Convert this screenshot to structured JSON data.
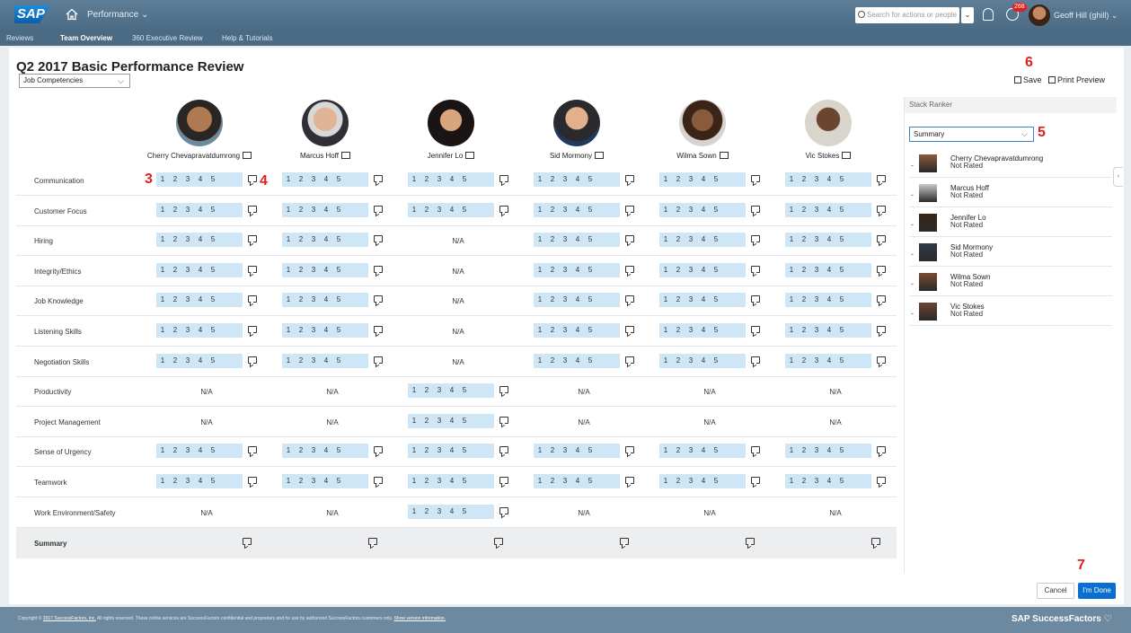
{
  "header": {
    "logo": "SAP",
    "module": "Performance ⌄",
    "search_placeholder": "Search for actions or people",
    "todo_badge": "268",
    "user_name": "Geoff Hill (ghill) ⌄",
    "nav": [
      "Reviews",
      "Team Overview",
      "360 Executive Review",
      "Help & Tutorials"
    ]
  },
  "page": {
    "title": "Q2 2017 Basic Performance Review",
    "view_select": "Job Competencies",
    "save_label": "Save",
    "print_label": "Print Preview"
  },
  "markers": [
    "3",
    "4",
    "5",
    "6",
    "7"
  ],
  "employees": [
    {
      "name": "Cherry Chevapravatdumrong"
    },
    {
      "name": "Marcus Hoff"
    },
    {
      "name": "Jennifer Lo"
    },
    {
      "name": "Sid Mormony"
    },
    {
      "name": "Wilma Sown"
    },
    {
      "name": "Vic Stokes"
    }
  ],
  "rating_scale": [
    "1",
    "2",
    "3",
    "4",
    "5"
  ],
  "na_text": "N/A",
  "competencies": [
    {
      "label": "Communication",
      "cells": [
        "r",
        "r",
        "r",
        "r",
        "r",
        "r"
      ]
    },
    {
      "label": "Customer Focus",
      "cells": [
        "r",
        "r",
        "r",
        "r",
        "r",
        "r"
      ]
    },
    {
      "label": "Hiring",
      "cells": [
        "r",
        "r",
        "na",
        "r",
        "r",
        "r"
      ]
    },
    {
      "label": "Integrity/Ethics",
      "cells": [
        "r",
        "r",
        "na",
        "r",
        "r",
        "r"
      ]
    },
    {
      "label": "Job Knowledge",
      "cells": [
        "r",
        "r",
        "na",
        "r",
        "r",
        "r"
      ]
    },
    {
      "label": "Listening Skills",
      "cells": [
        "r",
        "r",
        "na",
        "r",
        "r",
        "r"
      ]
    },
    {
      "label": "Negotiation Skills",
      "cells": [
        "r",
        "r",
        "na",
        "r",
        "r",
        "r"
      ]
    },
    {
      "label": "Productivity",
      "cells": [
        "na",
        "na",
        "r",
        "na",
        "na",
        "na"
      ]
    },
    {
      "label": "Project Management",
      "cells": [
        "na",
        "na",
        "r",
        "na",
        "na",
        "na"
      ]
    },
    {
      "label": "Sense of Urgency",
      "cells": [
        "r",
        "r",
        "r",
        "r",
        "r",
        "r"
      ]
    },
    {
      "label": "Teamwork",
      "cells": [
        "r",
        "r",
        "r",
        "r",
        "r",
        "r"
      ]
    },
    {
      "label": "Work Environment/Safety",
      "cells": [
        "na",
        "na",
        "r",
        "na",
        "na",
        "na"
      ]
    }
  ],
  "summary_label": "Summary",
  "stack_ranker": {
    "title": "Stack Ranker",
    "select": "Summary",
    "items": [
      {
        "name": "Cherry Chevapravatdumrong",
        "status": "Not Rated"
      },
      {
        "name": "Marcus Hoff",
        "status": "Not Rated"
      },
      {
        "name": "Jennifer Lo",
        "status": "Not Rated"
      },
      {
        "name": "Sid Mormony",
        "status": "Not Rated"
      },
      {
        "name": "Wilma Sown",
        "status": "Not Rated"
      },
      {
        "name": "Vic Stokes",
        "status": "Not Rated"
      }
    ]
  },
  "buttons": {
    "cancel": "Cancel",
    "done": "I'm Done"
  },
  "footer": {
    "copyright_prefix": "Copyright ©",
    "copyright_link": "2017 SuccessFactors, Inc.",
    "copyright_text": "All rights reserved. These online services are SuccessFactors confidential and proprietary and for use by authorized SuccessFactors customers only.",
    "version_link": "Show version information.",
    "brand": "SAP SuccessFactors ♡"
  },
  "colors": {
    "rating_cell": "#cfe6f7",
    "primary": "#0a6ed1",
    "marker": "#e0201c",
    "shell": "#4b6a84"
  }
}
